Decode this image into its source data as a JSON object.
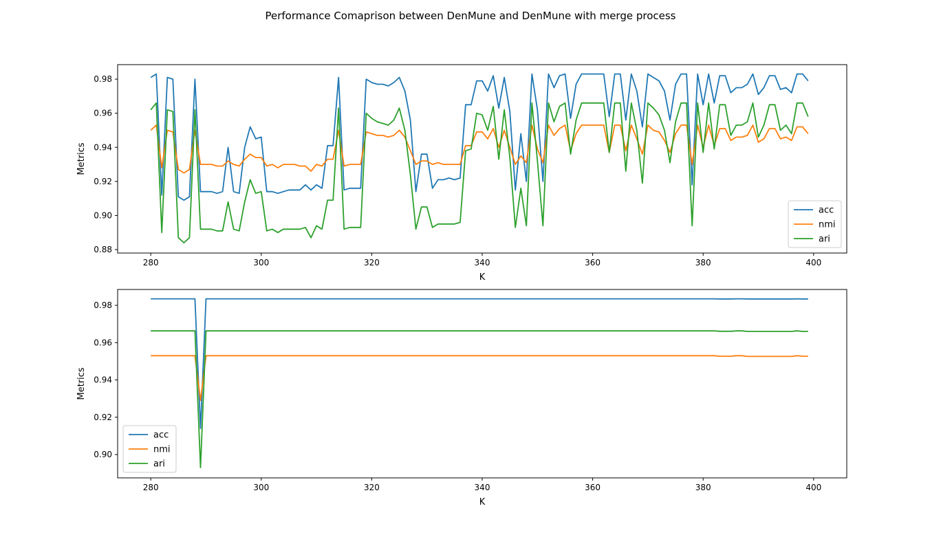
{
  "figure": {
    "title": "Performance Comaprison between DenMune and DenMune with merge process"
  },
  "colors": {
    "acc": "#1f77b4",
    "nmi": "#ff7f0e",
    "ari": "#2ca02c"
  },
  "chart_data": [
    {
      "type": "line",
      "xlabel": "K",
      "ylabel": "Metrics",
      "xlim": [
        274,
        406
      ],
      "ylim": [
        0.878,
        0.9885
      ],
      "xticks": [
        280,
        300,
        320,
        340,
        360,
        380,
        400
      ],
      "yticks": [
        0.88,
        0.9,
        0.92,
        0.94,
        0.96,
        0.98
      ],
      "legend": "lower-right",
      "x": [
        280,
        281,
        282,
        283,
        284,
        285,
        286,
        287,
        288,
        289,
        290,
        291,
        292,
        293,
        294,
        295,
        296,
        297,
        298,
        299,
        300,
        301,
        302,
        303,
        304,
        305,
        306,
        307,
        308,
        309,
        310,
        311,
        312,
        313,
        314,
        315,
        316,
        317,
        318,
        319,
        320,
        321,
        322,
        323,
        324,
        325,
        326,
        327,
        328,
        329,
        330,
        331,
        332,
        333,
        334,
        335,
        336,
        337,
        338,
        339,
        340,
        341,
        342,
        343,
        344,
        345,
        346,
        347,
        348,
        349,
        350,
        351,
        352,
        353,
        354,
        355,
        356,
        357,
        358,
        359,
        360,
        361,
        362,
        363,
        364,
        365,
        366,
        367,
        368,
        369,
        370,
        371,
        372,
        373,
        374,
        375,
        376,
        377,
        378,
        379,
        380,
        381,
        382,
        383,
        384,
        385,
        386,
        387,
        388,
        389,
        390,
        391,
        392,
        393,
        394,
        395,
        396,
        397,
        398,
        399
      ],
      "series": [
        {
          "name": "acc",
          "values": [
            0.981,
            0.983,
            0.912,
            0.981,
            0.98,
            0.911,
            0.909,
            0.911,
            0.98,
            0.914,
            0.914,
            0.914,
            0.913,
            0.914,
            0.94,
            0.914,
            0.913,
            0.94,
            0.952,
            0.945,
            0.946,
            0.914,
            0.914,
            0.913,
            0.914,
            0.915,
            0.915,
            0.915,
            0.918,
            0.915,
            0.918,
            0.916,
            0.941,
            0.941,
            0.981,
            0.915,
            0.916,
            0.916,
            0.916,
            0.98,
            0.978,
            0.977,
            0.977,
            0.976,
            0.978,
            0.981,
            0.973,
            0.956,
            0.914,
            0.936,
            0.936,
            0.916,
            0.921,
            0.921,
            0.922,
            0.921,
            0.922,
            0.965,
            0.965,
            0.979,
            0.979,
            0.973,
            0.982,
            0.963,
            0.981,
            0.961,
            0.915,
            0.948,
            0.92,
            0.983,
            0.962,
            0.92,
            0.983,
            0.975,
            0.982,
            0.983,
            0.957,
            0.977,
            0.983,
            0.983,
            0.983,
            0.983,
            0.983,
            0.958,
            0.983,
            0.983,
            0.956,
            0.983,
            0.973,
            0.952,
            0.983,
            0.981,
            0.979,
            0.973,
            0.956,
            0.977,
            0.983,
            0.983,
            0.918,
            0.983,
            0.965,
            0.983,
            0.966,
            0.982,
            0.982,
            0.972,
            0.975,
            0.975,
            0.977,
            0.983,
            0.971,
            0.975,
            0.982,
            0.982,
            0.974,
            0.975,
            0.972,
            0.983,
            0.983,
            0.979
          ]
        },
        {
          "name": "nmi",
          "values": [
            0.95,
            0.953,
            0.928,
            0.95,
            0.949,
            0.927,
            0.925,
            0.927,
            0.95,
            0.93,
            0.93,
            0.93,
            0.929,
            0.929,
            0.932,
            0.93,
            0.929,
            0.933,
            0.936,
            0.934,
            0.934,
            0.929,
            0.93,
            0.928,
            0.93,
            0.93,
            0.93,
            0.929,
            0.929,
            0.926,
            0.93,
            0.929,
            0.933,
            0.933,
            0.95,
            0.929,
            0.93,
            0.93,
            0.93,
            0.949,
            0.948,
            0.947,
            0.947,
            0.946,
            0.947,
            0.95,
            0.946,
            0.938,
            0.93,
            0.932,
            0.932,
            0.93,
            0.931,
            0.93,
            0.93,
            0.93,
            0.93,
            0.941,
            0.941,
            0.949,
            0.949,
            0.945,
            0.951,
            0.94,
            0.95,
            0.94,
            0.93,
            0.935,
            0.931,
            0.953,
            0.939,
            0.931,
            0.953,
            0.947,
            0.951,
            0.953,
            0.938,
            0.948,
            0.953,
            0.953,
            0.953,
            0.953,
            0.953,
            0.937,
            0.953,
            0.953,
            0.938,
            0.953,
            0.945,
            0.936,
            0.953,
            0.95,
            0.949,
            0.944,
            0.937,
            0.948,
            0.953,
            0.953,
            0.93,
            0.953,
            0.94,
            0.953,
            0.941,
            0.951,
            0.951,
            0.944,
            0.946,
            0.946,
            0.947,
            0.953,
            0.943,
            0.945,
            0.951,
            0.951,
            0.945,
            0.946,
            0.944,
            0.952,
            0.952,
            0.948
          ]
        },
        {
          "name": "ari",
          "values": [
            0.962,
            0.966,
            0.89,
            0.962,
            0.961,
            0.887,
            0.884,
            0.887,
            0.962,
            0.892,
            0.892,
            0.892,
            0.891,
            0.891,
            0.908,
            0.892,
            0.891,
            0.908,
            0.921,
            0.913,
            0.914,
            0.891,
            0.892,
            0.89,
            0.892,
            0.892,
            0.892,
            0.892,
            0.893,
            0.887,
            0.894,
            0.892,
            0.909,
            0.909,
            0.963,
            0.892,
            0.893,
            0.893,
            0.893,
            0.96,
            0.957,
            0.955,
            0.954,
            0.953,
            0.956,
            0.963,
            0.95,
            0.924,
            0.892,
            0.905,
            0.905,
            0.893,
            0.895,
            0.895,
            0.895,
            0.895,
            0.896,
            0.938,
            0.939,
            0.96,
            0.959,
            0.95,
            0.964,
            0.933,
            0.962,
            0.934,
            0.893,
            0.916,
            0.894,
            0.966,
            0.932,
            0.894,
            0.966,
            0.955,
            0.964,
            0.966,
            0.936,
            0.956,
            0.966,
            0.966,
            0.966,
            0.966,
            0.966,
            0.937,
            0.966,
            0.966,
            0.926,
            0.966,
            0.95,
            0.919,
            0.966,
            0.963,
            0.959,
            0.95,
            0.931,
            0.955,
            0.966,
            0.966,
            0.894,
            0.966,
            0.937,
            0.966,
            0.939,
            0.965,
            0.965,
            0.947,
            0.953,
            0.953,
            0.955,
            0.966,
            0.946,
            0.953,
            0.965,
            0.965,
            0.95,
            0.953,
            0.948,
            0.966,
            0.966,
            0.958
          ]
        }
      ]
    },
    {
      "type": "line",
      "xlabel": "K",
      "ylabel": "Metrics",
      "xlim": [
        274,
        406
      ],
      "ylim": [
        0.8875,
        0.9885
      ],
      "xticks": [
        280,
        300,
        320,
        340,
        360,
        380,
        400
      ],
      "yticks": [
        0.9,
        0.92,
        0.94,
        0.96,
        0.98
      ],
      "legend": "lower-left",
      "x": [
        280,
        288,
        289,
        290,
        382,
        383,
        384,
        385,
        386,
        387,
        388,
        389,
        390,
        391,
        392,
        393,
        394,
        395,
        396,
        397,
        398,
        399
      ],
      "series": [
        {
          "name": "acc",
          "values": [
            0.9835,
            0.9835,
            0.914,
            0.9835,
            0.9835,
            0.9834,
            0.9834,
            0.9834,
            0.9835,
            0.9835,
            0.9834,
            0.9834,
            0.9834,
            0.9834,
            0.9834,
            0.9834,
            0.9834,
            0.9834,
            0.9834,
            0.9835,
            0.9834,
            0.9834
          ]
        },
        {
          "name": "nmi",
          "values": [
            0.953,
            0.953,
            0.929,
            0.953,
            0.953,
            0.9527,
            0.9527,
            0.9527,
            0.953,
            0.953,
            0.9526,
            0.9526,
            0.9526,
            0.9526,
            0.9526,
            0.9526,
            0.9526,
            0.9526,
            0.9526,
            0.953,
            0.9527,
            0.9527
          ]
        },
        {
          "name": "ari",
          "values": [
            0.9663,
            0.9663,
            0.893,
            0.9663,
            0.9663,
            0.9661,
            0.9661,
            0.9661,
            0.9663,
            0.9663,
            0.966,
            0.966,
            0.966,
            0.966,
            0.966,
            0.966,
            0.966,
            0.966,
            0.966,
            0.9663,
            0.966,
            0.966
          ]
        }
      ]
    }
  ]
}
